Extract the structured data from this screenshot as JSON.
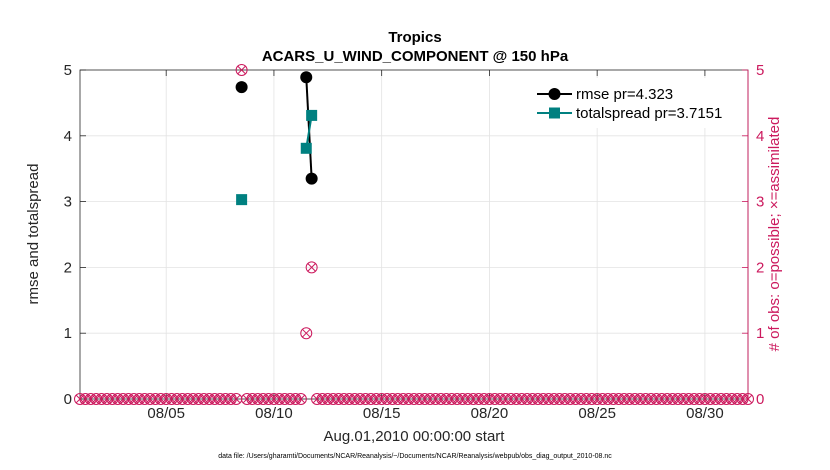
{
  "chart_data": {
    "type": "line",
    "title": "Tropics",
    "subtitle": "ACARS_U_WIND_COMPONENT @ 150 hPa",
    "xlabel": "Aug.01,2010 00:00:00 start",
    "ylabel": "rmse and totalspread",
    "ylabel_right": "# of obs: o=possible; ×=assimilated",
    "xlim": [
      1,
      32
    ],
    "ylim": [
      0,
      5
    ],
    "x_ticks": [
      5,
      10,
      15,
      20,
      25,
      30
    ],
    "x_tick_labels": [
      "08/05",
      "08/10",
      "08/15",
      "08/20",
      "08/25",
      "08/30"
    ],
    "y_ticks": [
      0,
      1,
      2,
      3,
      4,
      5
    ],
    "y_tick_labels": [
      "0",
      "1",
      "2",
      "3",
      "4",
      "5"
    ],
    "y_right_ticks": [
      0,
      1,
      2,
      3,
      4,
      5
    ],
    "y_right_tick_labels": [
      "0",
      "1",
      "2",
      "3",
      "4",
      "5"
    ],
    "grid": true,
    "legend_position": "top-right",
    "series": [
      {
        "name": "rmse pr=4.323",
        "color": "#000000",
        "marker": "circle",
        "segments": [
          [
            [
              8.5,
              4.74
            ]
          ],
          [
            [
              11.5,
              4.89
            ],
            [
              11.75,
              3.35
            ]
          ]
        ]
      },
      {
        "name": "totalspread pr=3.7151",
        "color": "#008080",
        "marker": "square",
        "segments": [
          [
            [
              8.5,
              3.03
            ]
          ],
          [
            [
              11.5,
              3.81
            ],
            [
              11.75,
              4.31
            ]
          ]
        ]
      }
    ],
    "obs_counts": {
      "color": "#cc1a5e",
      "interval_days": 0.25,
      "start": 1.0,
      "end": 32.0,
      "nonzero": [
        {
          "x": 8.5,
          "possible": 5,
          "assimilated": 5
        },
        {
          "x": 11.5,
          "possible": 1,
          "assimilated": 1
        },
        {
          "x": 11.75,
          "possible": 2,
          "assimilated": 2
        }
      ]
    },
    "footer": "data file: /Users/gharamti/Documents/NCAR/Reanalysis/~/Documents/NCAR/Reanalysis/webpub/obs_diag_output_2010-08.nc"
  }
}
